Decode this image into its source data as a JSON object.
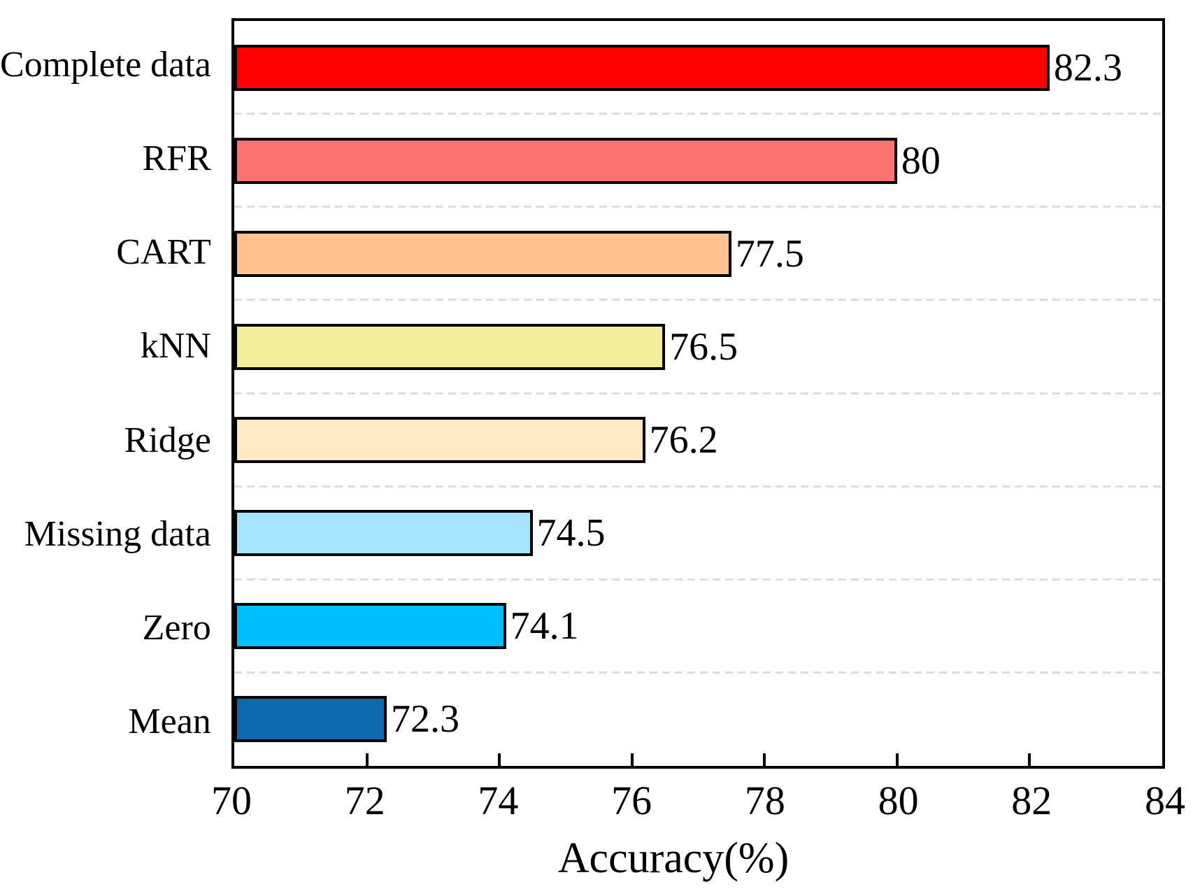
{
  "chart_data": {
    "type": "bar",
    "orientation": "horizontal",
    "title": "",
    "xlabel": "Accuracy(%)",
    "ylabel": "",
    "xlim": [
      70,
      84
    ],
    "xticks": [
      "70",
      "72",
      "74",
      "76",
      "78",
      "80",
      "82",
      "84"
    ],
    "grid": "dashed horizontal lines between category rows",
    "legend_position": "none",
    "categories": [
      "Complete data",
      "RFR",
      "CART",
      "kNN",
      "Ridge",
      "Missing data",
      "Zero",
      "Mean"
    ],
    "values": [
      82.3,
      80,
      77.5,
      76.5,
      76.2,
      74.5,
      74.1,
      72.3
    ],
    "value_labels": [
      "82.3",
      "80",
      "77.5",
      "76.5",
      "76.2",
      "74.5",
      "74.1",
      "72.3"
    ],
    "bar_colors": [
      "#FF0000",
      "#FC7370",
      "#FEC08E",
      "#F3EE9B",
      "#FEE9C4",
      "#A5E4FE",
      "#00BFFF",
      "#0B69AE"
    ],
    "bar_border_color": "#000000",
    "plot_border_color": "#000000",
    "gridline_color": "#DCDCDC"
  }
}
